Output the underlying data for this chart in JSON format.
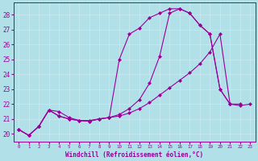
{
  "background_color": "#b2e0e8",
  "grid_color": "#d0eef2",
  "line_color": "#990099",
  "marker": "D",
  "markersize": 2.5,
  "xlabel": "Windchill (Refroidissement éolien,°C)",
  "ylabel_ticks": [
    20,
    21,
    22,
    23,
    24,
    25,
    26,
    27,
    28
  ],
  "xlim": [
    -0.5,
    23.5
  ],
  "ylim": [
    19.5,
    28.8
  ],
  "xticks": [
    0,
    1,
    2,
    3,
    4,
    5,
    6,
    7,
    8,
    9,
    10,
    11,
    12,
    13,
    14,
    15,
    16,
    17,
    18,
    19,
    20,
    21,
    22,
    23
  ],
  "line1_x": [
    0,
    1,
    2,
    3,
    4,
    5,
    6,
    7,
    8,
    9,
    10,
    11,
    12,
    13,
    14,
    15,
    16,
    17,
    18,
    19,
    20,
    21,
    22
  ],
  "line1_y": [
    20.3,
    19.9,
    20.5,
    21.6,
    21.5,
    21.1,
    20.9,
    20.9,
    21.0,
    21.1,
    25.0,
    26.7,
    27.1,
    27.8,
    28.1,
    28.4,
    28.4,
    28.1,
    27.3,
    26.7,
    23.0,
    22.0,
    22.0
  ],
  "line2_x": [
    0,
    1,
    2,
    3,
    4,
    5,
    6,
    7,
    8,
    9,
    10,
    11,
    12,
    13,
    14,
    15,
    16,
    17,
    18,
    19,
    20,
    21,
    22,
    23
  ],
  "line2_y": [
    20.3,
    19.9,
    20.5,
    21.6,
    21.2,
    21.0,
    20.9,
    20.85,
    21.0,
    21.1,
    21.2,
    21.4,
    21.7,
    22.1,
    22.6,
    23.1,
    23.6,
    24.1,
    24.7,
    25.5,
    26.7,
    22.0,
    21.9,
    22.0
  ],
  "line3_x": [
    0,
    1,
    2,
    3,
    4,
    5,
    6,
    7,
    8,
    9,
    10,
    11,
    12,
    13,
    14,
    15,
    16,
    17,
    18,
    19,
    20,
    21
  ],
  "line3_y": [
    20.3,
    19.9,
    20.5,
    21.6,
    21.2,
    21.0,
    20.9,
    20.85,
    21.0,
    21.1,
    21.3,
    21.7,
    22.3,
    23.4,
    25.2,
    28.1,
    28.4,
    28.1,
    27.3,
    26.7,
    23.0,
    22.0
  ]
}
